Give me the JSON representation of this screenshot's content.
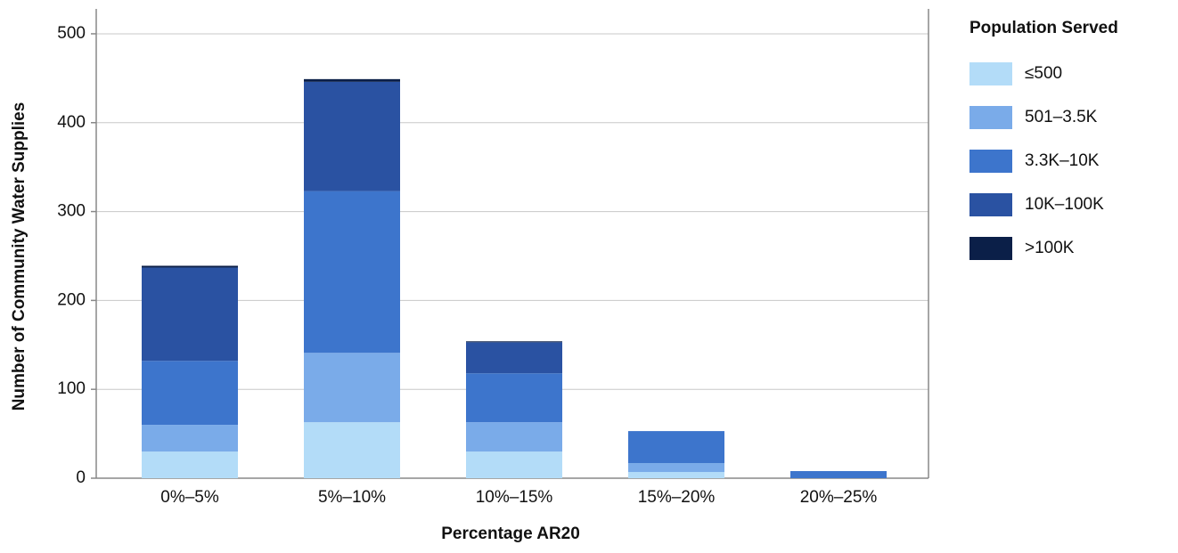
{
  "chart_data": {
    "type": "stacked_bar",
    "x_label": "Percentage AR20",
    "y_label": "Number of Community Water Supplies",
    "legend_title": "Population Served",
    "categories": [
      "0%–5%",
      "5%–10%",
      "10%–15%",
      "15%–20%",
      "20%–25%"
    ],
    "series": [
      {
        "name": "≤500",
        "color": "#b3dcf8",
        "values": [
          30,
          63,
          30,
          7,
          0
        ]
      },
      {
        "name": "501–3.5K",
        "color": "#7aabe9",
        "values": [
          30,
          78,
          33,
          10,
          0
        ]
      },
      {
        "name": "3.3K–10K",
        "color": "#3d75cc",
        "values": [
          72,
          182,
          55,
          36,
          8
        ]
      },
      {
        "name": "10K–100K",
        "color": "#2a52a2",
        "values": [
          105,
          123,
          35,
          0,
          0
        ]
      },
      {
        "name": ">100K",
        "color": "#0b1f48",
        "values": [
          2,
          3,
          1,
          0,
          0
        ]
      }
    ],
    "ylim": [
      0,
      528
    ],
    "yticks": [
      0,
      100,
      200,
      300,
      400,
      500
    ],
    "grid": true
  }
}
